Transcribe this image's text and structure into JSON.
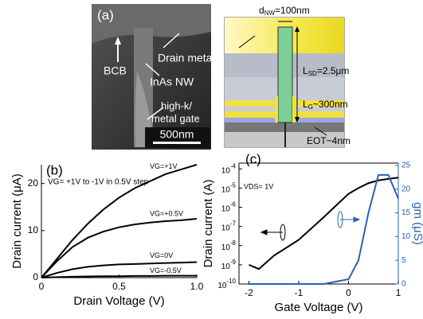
{
  "panel_a": {
    "label": "(a)",
    "sem_labels": [
      "BCB",
      "Drain metal",
      "InAs NW",
      "high-k/",
      "metal gate"
    ],
    "scale_bar": "500nm",
    "schematic": {
      "d": "d",
      "d_sub": "NW",
      "d_val": "=100nm",
      "lsd": "L",
      "lsd_sub": "SD",
      "lsd_val": "=2.5μm",
      "lg": "L",
      "lg_sub": "G",
      "lg_val": "~300nm",
      "eot": "EOT~4nm"
    }
  },
  "chart_data": [
    {
      "type": "line",
      "panel_label": "(b)",
      "annotation": "VG= +1V to -1V in 0.5V step",
      "xlabel": "Drain Voltage (V)",
      "ylabel": "Drain current (μA)",
      "x": [
        0,
        0.1,
        0.2,
        0.3,
        0.4,
        0.5,
        0.6,
        0.7,
        0.8,
        0.9,
        1
      ],
      "xlim": [
        0,
        1
      ],
      "xticks": [
        0,
        0.5,
        {
          "value": 1,
          "label": "1.0"
        }
      ],
      "ylim": [
        0,
        24
      ],
      "yticks": [
        0,
        10,
        20
      ],
      "series": [
        {
          "name": "VG=+1V",
          "color": "#000000",
          "values": [
            0,
            4,
            8,
            11.5,
            14.5,
            17,
            19,
            20.5,
            22,
            23,
            24
          ]
        },
        {
          "name": "VG=+0.5V",
          "color": "#000000",
          "values": [
            0,
            3.5,
            6.5,
            8.5,
            9.8,
            10.7,
            11.3,
            11.7,
            12,
            12.2,
            12.5
          ]
        },
        {
          "name": "VG=0V",
          "color": "#000000",
          "values": [
            0,
            1,
            1.8,
            2.3,
            2.6,
            2.8,
            2.9,
            3,
            3.1,
            3.2,
            3.3
          ]
        },
        {
          "name": "VG=-0.5V",
          "color": "#000000",
          "values": [
            0,
            0.1,
            0.2,
            0.25,
            0.3,
            0.3,
            0.35,
            0.35,
            0.4,
            0.4,
            0.4
          ]
        }
      ]
    },
    {
      "type": "line",
      "panel_label": "(c)",
      "annotation": "VDS= 1V",
      "xlabel": "Gate Voltage (V)",
      "ylabel": "Drain current (A)",
      "y2label": "gm (μS)",
      "log_y": true,
      "x": [
        -2,
        -1.8,
        -1.5,
        -1,
        -0.5,
        0,
        0.2,
        0.4,
        0.6,
        0.8,
        1
      ],
      "xlim": [
        -2.2,
        1
      ],
      "xticks": [
        -2,
        -1,
        0,
        1
      ],
      "ylim": [
        1e-10,
        0.0002
      ],
      "yticks": [
        {
          "value": 1e-10,
          "label": "10-10"
        },
        {
          "value": 1e-09,
          "label": "10-9"
        },
        {
          "value": 1e-08,
          "label": "10-8"
        },
        {
          "value": 1e-07,
          "label": "10-7"
        },
        {
          "value": 1e-06,
          "label": "10-6"
        },
        {
          "value": 1e-05,
          "label": "10-5"
        },
        {
          "value": 0.0001,
          "label": "10-4"
        }
      ],
      "y2lim": [
        0,
        25.5
      ],
      "y2ticks": [
        0,
        5,
        10,
        15,
        20,
        25
      ],
      "y2color": "#2a62b0",
      "series": [
        {
          "color": "#000000",
          "values": [
            1e-09,
            6e-10,
            3e-09,
            2e-08,
            3e-07,
            5e-06,
            1e-05,
            1.8e-05,
            2.5e-05,
            3e-05,
            3.5e-05
          ]
        },
        {
          "color": "#2a62b0",
          "axis": "y2",
          "values": [
            0,
            0,
            0,
            0,
            0,
            1,
            5,
            15,
            23,
            23,
            18
          ]
        }
      ]
    }
  ]
}
